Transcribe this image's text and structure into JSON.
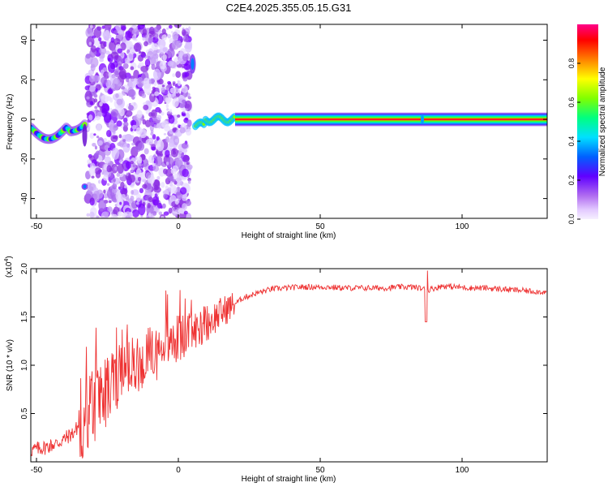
{
  "title": "C2E4.2025.355.05.15.G31",
  "chart_data": [
    {
      "type": "heatmap",
      "xlabel": "Height of straight line (km)",
      "ylabel": "Frequency (Hz)",
      "xlim": [
        -52,
        130
      ],
      "ylim": [
        -50,
        48
      ],
      "xticks": [
        -50,
        0,
        50,
        100
      ],
      "yticks": [
        -40,
        -20,
        0,
        20,
        40
      ],
      "colorbar": {
        "label": "Normalized spectral amplitude",
        "range": [
          0,
          1
        ],
        "ticks": [
          0.0,
          0.2,
          0.4,
          0.6,
          0.8
        ],
        "tick_labels": [
          "0.0",
          "0.2",
          "0.4",
          "0.6",
          "0.8"
        ]
      },
      "regions": [
        {
          "x_range": [
            -52,
            -33
          ],
          "description": "blobs near 0 Hz"
        },
        {
          "x_range": [
            -33,
            5
          ],
          "description": "scattered noise"
        },
        {
          "x_range": [
            5,
            20
          ],
          "description": "transition"
        },
        {
          "x_range": [
            20,
            130
          ],
          "description": "narrow band at 0 Hz"
        }
      ]
    },
    {
      "type": "line",
      "xlabel": "Height of straight line (km)",
      "ylabel": "SNR (10 * v/v)",
      "y_multiplier_label": "(x10",
      "y_multiplier_exp": "4",
      "y_multiplier_close": ")",
      "xlim": [
        -52,
        130
      ],
      "ylim": [
        0,
        2.0
      ],
      "xticks": [
        -50,
        0,
        50,
        100
      ],
      "yticks": [
        0.5,
        1.0,
        1.5,
        2.0
      ],
      "ytick_labels": [
        "0.5",
        "1.0",
        "1.5",
        "2.0"
      ],
      "color": "#ee3333",
      "x": [
        -52,
        -47,
        -42,
        -37,
        -32,
        -27,
        -22,
        -17,
        -12,
        -7,
        -2,
        3,
        8,
        13,
        18,
        23,
        28,
        33,
        38,
        43,
        48,
        53,
        58,
        63,
        68,
        73,
        78,
        83,
        88,
        93,
        98,
        103,
        108,
        113,
        118,
        123,
        128,
        130
      ],
      "y": [
        0.12,
        0.15,
        0.2,
        0.3,
        0.5,
        0.7,
        0.85,
        0.95,
        1.05,
        1.15,
        1.25,
        1.3,
        1.4,
        1.5,
        1.6,
        1.7,
        1.75,
        1.79,
        1.8,
        1.81,
        1.81,
        1.81,
        1.8,
        1.8,
        1.8,
        1.8,
        1.81,
        1.81,
        1.78,
        1.82,
        1.81,
        1.8,
        1.8,
        1.79,
        1.78,
        1.77,
        1.76,
        1.75
      ]
    }
  ]
}
